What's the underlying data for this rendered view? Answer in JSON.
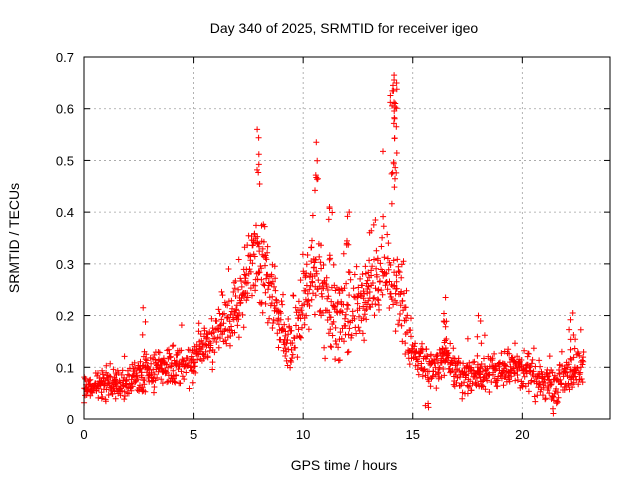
{
  "chart_data": {
    "type": "scatter",
    "title": "Day 340 of 2025, SRMTID for receiver igeo",
    "xlabel": "GPS time / hours",
    "ylabel": "SRMTID / TECUs",
    "xlim": [
      0,
      24
    ],
    "ylim": [
      0,
      0.7
    ],
    "xticks": [
      "0",
      "5",
      "10",
      "15",
      "20"
    ],
    "xtick_values": [
      0,
      5,
      10,
      15,
      20
    ],
    "yticks": [
      "0",
      "0.1",
      "0.2",
      "0.3",
      "0.4",
      "0.5",
      "0.6",
      "0.7"
    ],
    "ytick_values": [
      0,
      0.1,
      0.2,
      0.3,
      0.4,
      0.5,
      0.6,
      0.7
    ],
    "grid": true,
    "marker": "plus",
    "series": [
      {
        "name": "SRMTID",
        "color": "#ff0000",
        "trend": [
          [
            0.0,
            0.06
          ],
          [
            0.5,
            0.065
          ],
          [
            1.0,
            0.06
          ],
          [
            1.5,
            0.065
          ],
          [
            2.0,
            0.07
          ],
          [
            2.5,
            0.08
          ],
          [
            3.0,
            0.09
          ],
          [
            3.5,
            0.095
          ],
          [
            4.0,
            0.1
          ],
          [
            4.5,
            0.1
          ],
          [
            5.0,
            0.11
          ],
          [
            5.5,
            0.14
          ],
          [
            6.0,
            0.16
          ],
          [
            6.5,
            0.19
          ],
          [
            7.0,
            0.21
          ],
          [
            7.3,
            0.25
          ],
          [
            7.6,
            0.3
          ],
          [
            8.0,
            0.31
          ],
          [
            8.3,
            0.28
          ],
          [
            8.6,
            0.24
          ],
          [
            9.0,
            0.17
          ],
          [
            9.5,
            0.15
          ],
          [
            10.0,
            0.22
          ],
          [
            10.5,
            0.28
          ],
          [
            11.0,
            0.23
          ],
          [
            11.5,
            0.21
          ],
          [
            12.0,
            0.2
          ],
          [
            12.5,
            0.22
          ],
          [
            13.0,
            0.25
          ],
          [
            13.5,
            0.28
          ],
          [
            14.0,
            0.3
          ],
          [
            14.5,
            0.22
          ],
          [
            15.0,
            0.13
          ],
          [
            15.5,
            0.11
          ],
          [
            16.0,
            0.1
          ],
          [
            16.5,
            0.12
          ],
          [
            17.0,
            0.09
          ],
          [
            17.5,
            0.08
          ],
          [
            18.0,
            0.08
          ],
          [
            18.5,
            0.09
          ],
          [
            19.0,
            0.09
          ],
          [
            19.5,
            0.1
          ],
          [
            20.0,
            0.09
          ],
          [
            20.5,
            0.08
          ],
          [
            21.0,
            0.07
          ],
          [
            21.5,
            0.06
          ],
          [
            22.0,
            0.08
          ],
          [
            22.5,
            0.1
          ],
          [
            22.8,
            0.1
          ]
        ],
        "spread": [
          [
            0.0,
            0.03
          ],
          [
            5.0,
            0.04
          ],
          [
            7.0,
            0.07
          ],
          [
            8.0,
            0.1
          ],
          [
            9.0,
            0.05
          ],
          [
            10.0,
            0.09
          ],
          [
            11.0,
            0.09
          ],
          [
            13.0,
            0.08
          ],
          [
            14.0,
            0.12
          ],
          [
            15.0,
            0.04
          ],
          [
            17.0,
            0.04
          ],
          [
            22.8,
            0.04
          ]
        ],
        "peaks": [
          {
            "x": 7.9,
            "y": 0.56
          },
          {
            "x": 10.6,
            "y": 0.535
          },
          {
            "x": 14.15,
            "y": 0.665
          },
          {
            "x": 14.1,
            "y": 0.645
          },
          {
            "x": 14.2,
            "y": 0.61
          },
          {
            "x": 14.25,
            "y": 0.565
          },
          {
            "x": 12.1,
            "y": 0.4
          },
          {
            "x": 11.2,
            "y": 0.41
          },
          {
            "x": 22.3,
            "y": 0.205
          },
          {
            "x": 2.7,
            "y": 0.215
          },
          {
            "x": 16.5,
            "y": 0.235
          },
          {
            "x": 18.0,
            "y": 0.2
          },
          {
            "x": 15.7,
            "y": 0.03
          },
          {
            "x": 21.4,
            "y": 0.02
          }
        ]
      }
    ]
  }
}
